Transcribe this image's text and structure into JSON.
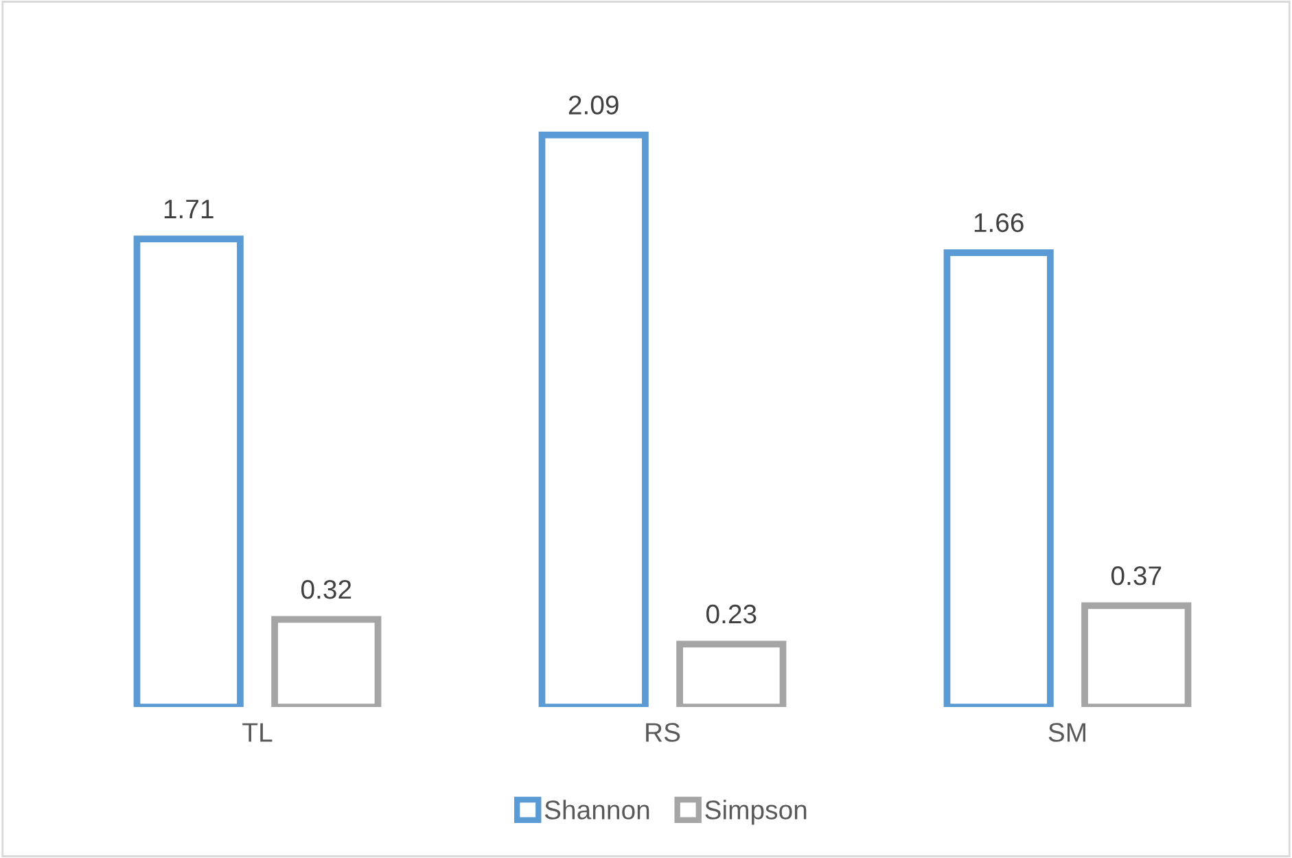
{
  "chart_data": {
    "type": "bar",
    "categories": [
      "TL",
      "RS",
      "SM"
    ],
    "series": [
      {
        "name": "Shannon",
        "color": "#5b9bd5",
        "values": [
          1.71,
          2.09,
          1.66
        ]
      },
      {
        "name": "Simpson",
        "color": "#a5a5a5",
        "values": [
          0.32,
          0.23,
          0.37
        ]
      }
    ],
    "data_labels": true,
    "legend": "bottom",
    "grid": false
  }
}
